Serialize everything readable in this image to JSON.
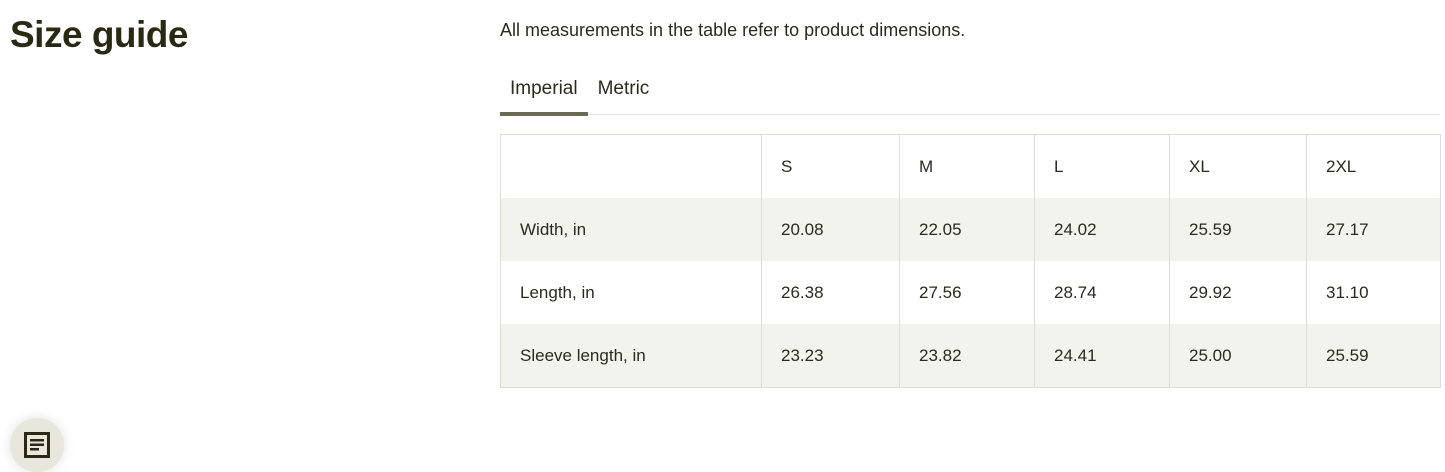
{
  "title": "Size guide",
  "description": "All measurements in the table refer to product dimensions.",
  "tabs": [
    {
      "label": "Imperial",
      "active": true
    },
    {
      "label": "Metric",
      "active": false
    }
  ],
  "table": {
    "headers": [
      "",
      "S",
      "M",
      "L",
      "XL",
      "2XL"
    ],
    "rows": [
      {
        "label": "Width, in",
        "values": [
          "20.08",
          "22.05",
          "24.02",
          "25.59",
          "27.17"
        ]
      },
      {
        "label": "Length, in",
        "values": [
          "26.38",
          "27.56",
          "28.74",
          "29.92",
          "31.10"
        ]
      },
      {
        "label": "Sleeve length, in",
        "values": [
          "23.23",
          "23.82",
          "24.41",
          "25.00",
          "25.59"
        ]
      }
    ]
  },
  "colors": {
    "accent": "#6b6b55",
    "row_shade": "#f3f3ee",
    "text": "#2b2a1e"
  },
  "chat_button": {
    "icon": "message-icon"
  }
}
